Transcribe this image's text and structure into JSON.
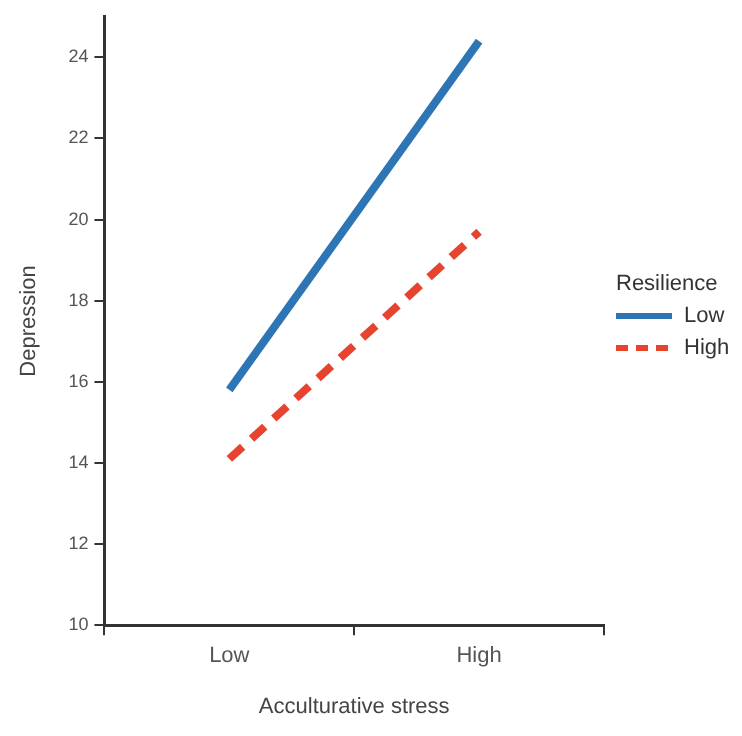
{
  "chart_data": {
    "type": "line",
    "xlabel": "Acculturative stress",
    "ylabel": "Depression",
    "legend_title": "Resilience",
    "categories": [
      "Low",
      "High"
    ],
    "series": [
      {
        "name": "Low",
        "color": "#2e75b6",
        "values": [
          15.8,
          24.4
        ],
        "line_style": "solid"
      },
      {
        "name": "High",
        "color": "#e8432e",
        "values": [
          14.1,
          19.7
        ],
        "line_style": "dashed"
      }
    ],
    "ylim": [
      10,
      25
    ],
    "yticks": [
      10,
      12,
      14,
      16,
      18,
      20,
      22,
      24
    ],
    "grid": false,
    "legend": "right",
    "marker": "none"
  }
}
